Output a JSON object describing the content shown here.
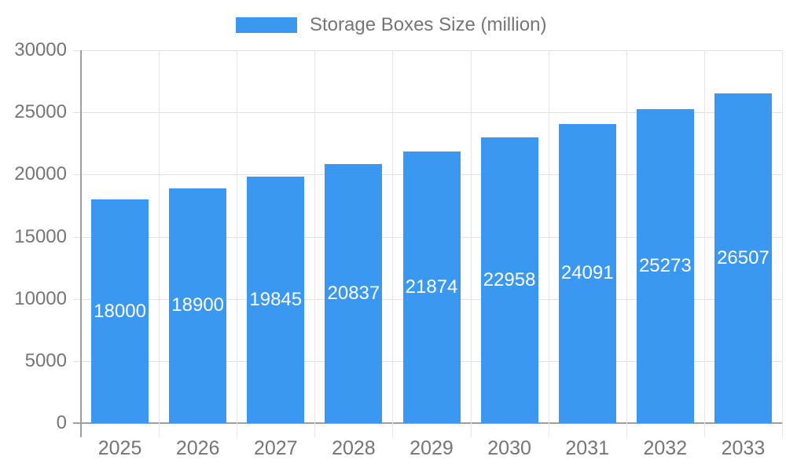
{
  "chart_data": {
    "type": "bar",
    "categories": [
      "2025",
      "2026",
      "2027",
      "2028",
      "2029",
      "2030",
      "2031",
      "2032",
      "2033"
    ],
    "series": [
      {
        "name": "Storage Boxes Size (million)",
        "values": [
          18000,
          18900,
          19845,
          20837,
          21874,
          22958,
          24091,
          25273,
          26507
        ]
      }
    ],
    "title": "",
    "xlabel": "",
    "ylabel": "",
    "ylim": [
      0,
      30000
    ],
    "yticks": [
      0,
      5000,
      10000,
      15000,
      20000,
      25000,
      30000
    ],
    "grid": true,
    "legend_position": "top-center",
    "value_labels": "inside-bar, vertically centered, white",
    "colors": {
      "bar": "#3B98F0",
      "value_label": "#FFFFFF",
      "axis_text": "#757575",
      "grid": "#E0E0E0",
      "grid_vertical": "#E6E6E6",
      "axis_line": "#9E9E9E",
      "background": "#FFFFFF"
    }
  }
}
